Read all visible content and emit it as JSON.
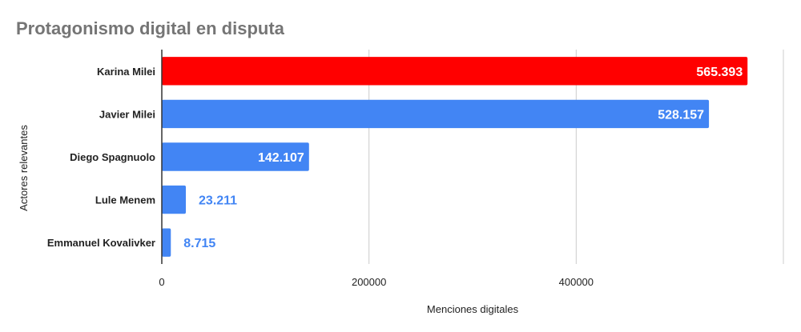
{
  "chart_data": {
    "type": "bar",
    "orientation": "horizontal",
    "title": "Protagonismo digital en disputa",
    "xlabel": "Menciones digitales",
    "ylabel": "Actores relevantes",
    "categories": [
      "Karina Milei",
      "Javier Milei",
      "Diego Spagnuolo",
      "Lule Menem",
      "Emmanuel Kovalivker"
    ],
    "values": [
      565393,
      528157,
      142107,
      23211,
      8715
    ],
    "value_labels": [
      "565.393",
      "528.157",
      "142.107",
      "23.211",
      "8.715"
    ],
    "bar_colors": [
      "#ff0000",
      "#4285f4",
      "#4285f4",
      "#4285f4",
      "#4285f4"
    ],
    "xlim": [
      0,
      600000
    ],
    "xticks": [
      0,
      200000,
      400000
    ],
    "xtick_labels": [
      "0",
      "200000",
      "400000"
    ],
    "grid": "vertical",
    "legend": "none"
  }
}
